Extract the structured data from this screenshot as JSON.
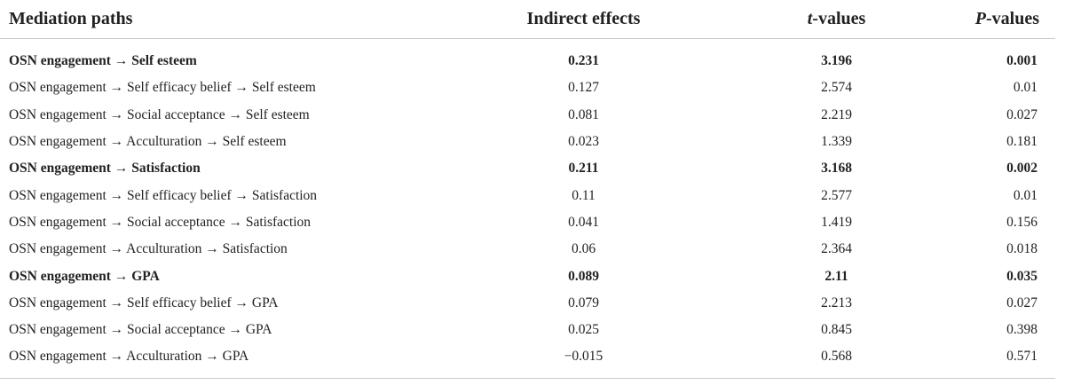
{
  "table": {
    "headers": {
      "path": "Mediation paths",
      "indirect": "Indirect effects",
      "t_italic": "t",
      "t_rest": "-values",
      "p_italic": "P",
      "p_rest": "-values"
    },
    "rows": [
      {
        "path": "OSN engagement → Self esteem",
        "indirect": "0.231",
        "t": "3.196",
        "p": "0.001",
        "bold": true
      },
      {
        "path": "OSN engagement → Self efficacy belief → Self esteem",
        "indirect": "0.127",
        "t": "2.574",
        "p": "0.01",
        "bold": false
      },
      {
        "path": "OSN engagement → Social acceptance → Self esteem",
        "indirect": "0.081",
        "t": "2.219",
        "p": "0.027",
        "bold": false
      },
      {
        "path": "OSN engagement → Acculturation → Self esteem",
        "indirect": "0.023",
        "t": "1.339",
        "p": "0.181",
        "bold": false
      },
      {
        "path": "OSN engagement → Satisfaction",
        "indirect": "0.211",
        "t": "3.168",
        "p": "0.002",
        "bold": true
      },
      {
        "path": "OSN engagement → Self efficacy belief → Satisfaction",
        "indirect": "0.11",
        "t": "2.577",
        "p": "0.01",
        "bold": false
      },
      {
        "path": "OSN engagement → Social acceptance → Satisfaction",
        "indirect": "0.041",
        "t": "1.419",
        "p": "0.156",
        "bold": false
      },
      {
        "path": "OSN engagement → Acculturation → Satisfaction",
        "indirect": "0.06",
        "t": "2.364",
        "p": "0.018",
        "bold": false
      },
      {
        "path": "OSN engagement → GPA",
        "indirect": "0.089",
        "t": "2.11",
        "p": "0.035",
        "bold": true
      },
      {
        "path": "OSN engagement → Self efficacy belief → GPA",
        "indirect": "0.079",
        "t": "2.213",
        "p": "0.027",
        "bold": false
      },
      {
        "path": "OSN engagement → Social acceptance → GPA",
        "indirect": "0.025",
        "t": "0.845",
        "p": "0.398",
        "bold": false
      },
      {
        "path": "OSN engagement → Acculturation → GPA",
        "indirect": "−0.015",
        "t": "0.568",
        "p": "0.571",
        "bold": false
      }
    ]
  }
}
